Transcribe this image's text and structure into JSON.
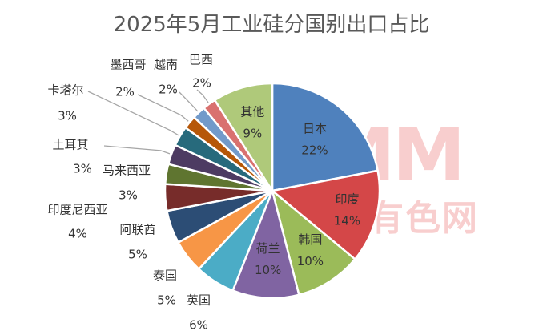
{
  "chart_data": {
    "type": "pie",
    "title": "2025年5月工业硅分国别出口占比",
    "watermark": {
      "logo": "SMM",
      "text": "上海有色网"
    },
    "slices": [
      {
        "name": "日本",
        "value": 22,
        "label": "22%",
        "color": "#4f81bd"
      },
      {
        "name": "印度",
        "value": 14,
        "label": "14%",
        "color": "#d44748"
      },
      {
        "name": "韩国",
        "value": 10,
        "label": "10%",
        "color": "#9bbb59"
      },
      {
        "name": "荷兰",
        "value": 10,
        "label": "10%",
        "color": "#8064a2"
      },
      {
        "name": "英国",
        "value": 6,
        "label": "6%",
        "color": "#4bacc6"
      },
      {
        "name": "泰国",
        "value": 5,
        "label": "5%",
        "color": "#f79646"
      },
      {
        "name": "阿联酋",
        "value": 5,
        "label": "5%",
        "color": "#2c4d75"
      },
      {
        "name": "印度尼西亚",
        "value": 4,
        "label": "4%",
        "color": "#772c2a"
      },
      {
        "name": "马来西亚",
        "value": 3,
        "label": "3%",
        "color": "#5f7530"
      },
      {
        "name": "土耳其",
        "value": 3,
        "label": "3%",
        "color": "#4d3b62"
      },
      {
        "name": "卡塔尔",
        "value": 3,
        "label": "3%",
        "color": "#276a7c"
      },
      {
        "name": "墨西哥",
        "value": 2,
        "label": "2%",
        "color": "#b65708"
      },
      {
        "name": "越南",
        "value": 2,
        "label": "2%",
        "color": "#729aca"
      },
      {
        "name": "巴西",
        "value": 2,
        "label": "2%",
        "color": "#d9716f"
      },
      {
        "name": "其他",
        "value": 9,
        "label": "9%",
        "color": "#afc97a"
      }
    ]
  }
}
